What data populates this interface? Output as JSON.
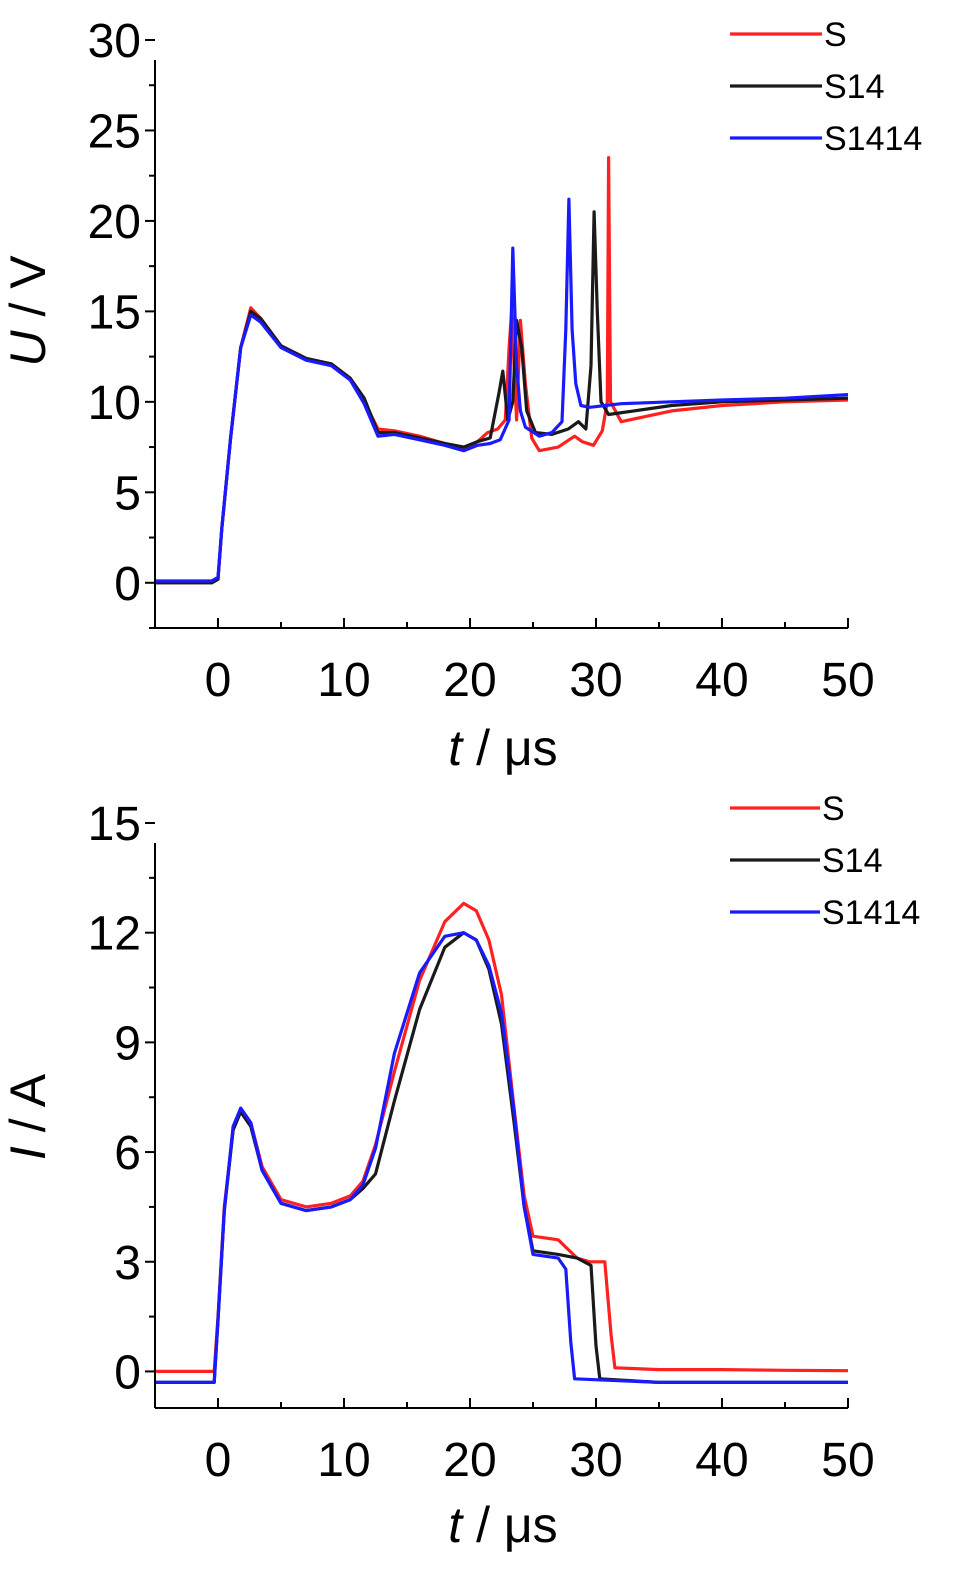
{
  "chart_data": [
    {
      "type": "line",
      "xlabel": "t / μs",
      "xlabel_var": "t",
      "xlabel_rest": " / μs",
      "ylabel": "U / V",
      "ylabel_var": "U",
      "ylabel_rest": " / V",
      "xlim": [
        -5,
        50
      ],
      "ylim": [
        -2.5,
        30
      ],
      "xticks": [
        0,
        10,
        20,
        30,
        40,
        50
      ],
      "yticks": [
        0,
        5,
        10,
        15,
        20,
        25,
        30
      ],
      "grid": false,
      "legend_position": "top-right",
      "series": [
        {
          "name": "S",
          "color": "#ff2020",
          "points": [
            [
              -5,
              0
            ],
            [
              -0.5,
              0
            ],
            [
              0,
              0.2
            ],
            [
              0.3,
              3
            ],
            [
              1,
              8
            ],
            [
              1.8,
              13
            ],
            [
              2.6,
              15.2
            ],
            [
              3.4,
              14.6
            ],
            [
              5,
              13.1
            ],
            [
              7,
              12.4
            ],
            [
              9,
              12.1
            ],
            [
              10.5,
              11.3
            ],
            [
              11.6,
              10
            ],
            [
              12.7,
              8.5
            ],
            [
              14,
              8.4
            ],
            [
              16,
              8.1
            ],
            [
              18,
              7.7
            ],
            [
              19.5,
              7.4
            ],
            [
              20.6,
              7.8
            ],
            [
              21.4,
              8.3
            ],
            [
              22.2,
              8.5
            ],
            [
              22.8,
              9
            ],
            [
              23.1,
              13
            ],
            [
              23.3,
              15
            ],
            [
              23.5,
              12
            ],
            [
              23.7,
              9
            ],
            [
              24,
              14.5
            ],
            [
              24.4,
              11
            ],
            [
              24.9,
              8
            ],
            [
              25.5,
              7.3
            ],
            [
              27,
              7.5
            ],
            [
              28.3,
              8.1
            ],
            [
              28.9,
              7.8
            ],
            [
              29.8,
              7.6
            ],
            [
              30.5,
              8.4
            ],
            [
              30.9,
              10
            ],
            [
              31.0,
              23.5
            ],
            [
              31.15,
              10
            ],
            [
              32,
              8.9
            ],
            [
              34,
              9.2
            ],
            [
              36,
              9.5
            ],
            [
              40,
              9.8
            ],
            [
              45,
              10
            ],
            [
              50,
              10.1
            ]
          ]
        },
        {
          "name": "S14",
          "color": "#1a1a1a",
          "points": [
            [
              -5,
              0
            ],
            [
              -0.5,
              0
            ],
            [
              0,
              0.2
            ],
            [
              0.3,
              3
            ],
            [
              1,
              8
            ],
            [
              1.8,
              13
            ],
            [
              2.6,
              15
            ],
            [
              3.4,
              14.6
            ],
            [
              5,
              13.1
            ],
            [
              7,
              12.4
            ],
            [
              9,
              12.1
            ],
            [
              10.5,
              11.3
            ],
            [
              11.6,
              10.2
            ],
            [
              12.7,
              8.3
            ],
            [
              14,
              8.3
            ],
            [
              16,
              8
            ],
            [
              18,
              7.7
            ],
            [
              19.5,
              7.5
            ],
            [
              20.6,
              7.8
            ],
            [
              21.6,
              8
            ],
            [
              22.3,
              10.5
            ],
            [
              22.6,
              11.7
            ],
            [
              23,
              9
            ],
            [
              23.4,
              10
            ],
            [
              23.7,
              14.5
            ],
            [
              24.1,
              13
            ],
            [
              24.5,
              9.5
            ],
            [
              25.2,
              8.3
            ],
            [
              26.5,
              8.2
            ],
            [
              27.8,
              8.5
            ],
            [
              28.6,
              8.9
            ],
            [
              29.2,
              8.5
            ],
            [
              29.6,
              12
            ],
            [
              29.85,
              20.5
            ],
            [
              30.1,
              15
            ],
            [
              30.4,
              10
            ],
            [
              31,
              9.3
            ],
            [
              33,
              9.5
            ],
            [
              36,
              9.8
            ],
            [
              40,
              10
            ],
            [
              45,
              10.1
            ],
            [
              50,
              10.2
            ]
          ]
        },
        {
          "name": "S1414",
          "color": "#1a1aff",
          "points": [
            [
              -5,
              0.1
            ],
            [
              -0.5,
              0.1
            ],
            [
              0,
              0.3
            ],
            [
              0.3,
              3
            ],
            [
              1,
              8
            ],
            [
              1.8,
              13
            ],
            [
              2.6,
              14.8
            ],
            [
              3.4,
              14.4
            ],
            [
              5,
              13
            ],
            [
              7,
              12.3
            ],
            [
              9,
              12
            ],
            [
              10.5,
              11.2
            ],
            [
              11.6,
              9.9
            ],
            [
              12.7,
              8.1
            ],
            [
              14,
              8.2
            ],
            [
              16,
              7.9
            ],
            [
              18,
              7.6
            ],
            [
              19.5,
              7.3
            ],
            [
              20.6,
              7.6
            ],
            [
              21.6,
              7.7
            ],
            [
              22.4,
              7.9
            ],
            [
              23.1,
              9
            ],
            [
              23.4,
              18.5
            ],
            [
              23.7,
              12
            ],
            [
              24,
              9.5
            ],
            [
              24.4,
              8.6
            ],
            [
              25.5,
              8.1
            ],
            [
              26.5,
              8.3
            ],
            [
              27.3,
              8.9
            ],
            [
              27.6,
              14
            ],
            [
              27.85,
              21.2
            ],
            [
              28.1,
              14
            ],
            [
              28.4,
              11
            ],
            [
              28.8,
              9.8
            ],
            [
              29.5,
              9.7
            ],
            [
              32,
              9.9
            ],
            [
              36,
              10
            ],
            [
              40,
              10.1
            ],
            [
              45,
              10.2
            ],
            [
              50,
              10.4
            ]
          ]
        }
      ]
    },
    {
      "type": "line",
      "xlabel": "t / μs",
      "xlabel_var": "t",
      "xlabel_rest": " / μs",
      "ylabel": "I / A",
      "ylabel_var": "I",
      "ylabel_rest": " / A",
      "xlim": [
        -5,
        50
      ],
      "ylim": [
        -1,
        15
      ],
      "xticks": [
        0,
        10,
        20,
        30,
        40,
        50
      ],
      "yticks": [
        0,
        3,
        6,
        9,
        12,
        15
      ],
      "grid": false,
      "legend_position": "top-right",
      "series": [
        {
          "name": "S",
          "color": "#ff2020",
          "points": [
            [
              -5,
              0
            ],
            [
              -0.3,
              0
            ],
            [
              0,
              1.5
            ],
            [
              0.5,
              4.5
            ],
            [
              1.2,
              6.6
            ],
            [
              1.8,
              7.2
            ],
            [
              2.6,
              6.8
            ],
            [
              3.5,
              5.6
            ],
            [
              5,
              4.7
            ],
            [
              7,
              4.5
            ],
            [
              9,
              4.6
            ],
            [
              10.5,
              4.8
            ],
            [
              11.5,
              5.2
            ],
            [
              12.5,
              6.2
            ],
            [
              14,
              8.2
            ],
            [
              16,
              10.7
            ],
            [
              18,
              12.3
            ],
            [
              19.5,
              12.8
            ],
            [
              20.5,
              12.6
            ],
            [
              21.5,
              11.8
            ],
            [
              22.5,
              10.3
            ],
            [
              23.5,
              7.2
            ],
            [
              24.3,
              4.8
            ],
            [
              25,
              3.7
            ],
            [
              27,
              3.6
            ],
            [
              28.5,
              3.1
            ],
            [
              29.5,
              3.0
            ],
            [
              30.7,
              3.0
            ],
            [
              31.2,
              1.0
            ],
            [
              31.5,
              0.1
            ],
            [
              35,
              0.05
            ],
            [
              40,
              0.05
            ],
            [
              45,
              0.03
            ],
            [
              50,
              0.02
            ]
          ]
        },
        {
          "name": "S14",
          "color": "#1a1a1a",
          "points": [
            [
              -5,
              -0.3
            ],
            [
              -0.3,
              -0.3
            ],
            [
              0,
              1.4
            ],
            [
              0.5,
              4.4
            ],
            [
              1.2,
              6.6
            ],
            [
              1.8,
              7.1
            ],
            [
              2.6,
              6.7
            ],
            [
              3.5,
              5.5
            ],
            [
              5,
              4.6
            ],
            [
              7,
              4.4
            ],
            [
              9,
              4.5
            ],
            [
              10.5,
              4.7
            ],
            [
              11.5,
              5.0
            ],
            [
              12.5,
              5.4
            ],
            [
              14,
              7.4
            ],
            [
              16,
              9.9
            ],
            [
              18,
              11.6
            ],
            [
              19.5,
              12.0
            ],
            [
              20.5,
              11.8
            ],
            [
              21.5,
              11.0
            ],
            [
              22.5,
              9.5
            ],
            [
              23.5,
              6.8
            ],
            [
              24.3,
              4.5
            ],
            [
              25,
              3.3
            ],
            [
              27,
              3.2
            ],
            [
              28.5,
              3.1
            ],
            [
              29.6,
              2.9
            ],
            [
              30,
              0.7
            ],
            [
              30.3,
              -0.2
            ],
            [
              35,
              -0.3
            ],
            [
              40,
              -0.3
            ],
            [
              45,
              -0.3
            ],
            [
              50,
              -0.3
            ]
          ]
        },
        {
          "name": "S1414",
          "color": "#1a1aff",
          "points": [
            [
              -5,
              -0.3
            ],
            [
              -0.3,
              -0.3
            ],
            [
              0,
              1.4
            ],
            [
              0.5,
              4.4
            ],
            [
              1.2,
              6.7
            ],
            [
              1.8,
              7.2
            ],
            [
              2.6,
              6.8
            ],
            [
              3.5,
              5.5
            ],
            [
              5,
              4.6
            ],
            [
              7,
              4.4
            ],
            [
              9,
              4.5
            ],
            [
              10.5,
              4.7
            ],
            [
              11.5,
              5.1
            ],
            [
              12.5,
              6.1
            ],
            [
              14,
              8.7
            ],
            [
              16,
              10.9
            ],
            [
              18,
              11.9
            ],
            [
              19.5,
              12.0
            ],
            [
              20.5,
              11.8
            ],
            [
              21.5,
              11.1
            ],
            [
              22.5,
              9.8
            ],
            [
              23.5,
              7.1
            ],
            [
              24.3,
              4.5
            ],
            [
              25,
              3.2
            ],
            [
              27,
              3.1
            ],
            [
              27.6,
              2.8
            ],
            [
              28,
              0.8
            ],
            [
              28.3,
              -0.2
            ],
            [
              35,
              -0.3
            ],
            [
              40,
              -0.3
            ],
            [
              45,
              -0.3
            ],
            [
              50,
              -0.3
            ]
          ]
        }
      ]
    }
  ]
}
